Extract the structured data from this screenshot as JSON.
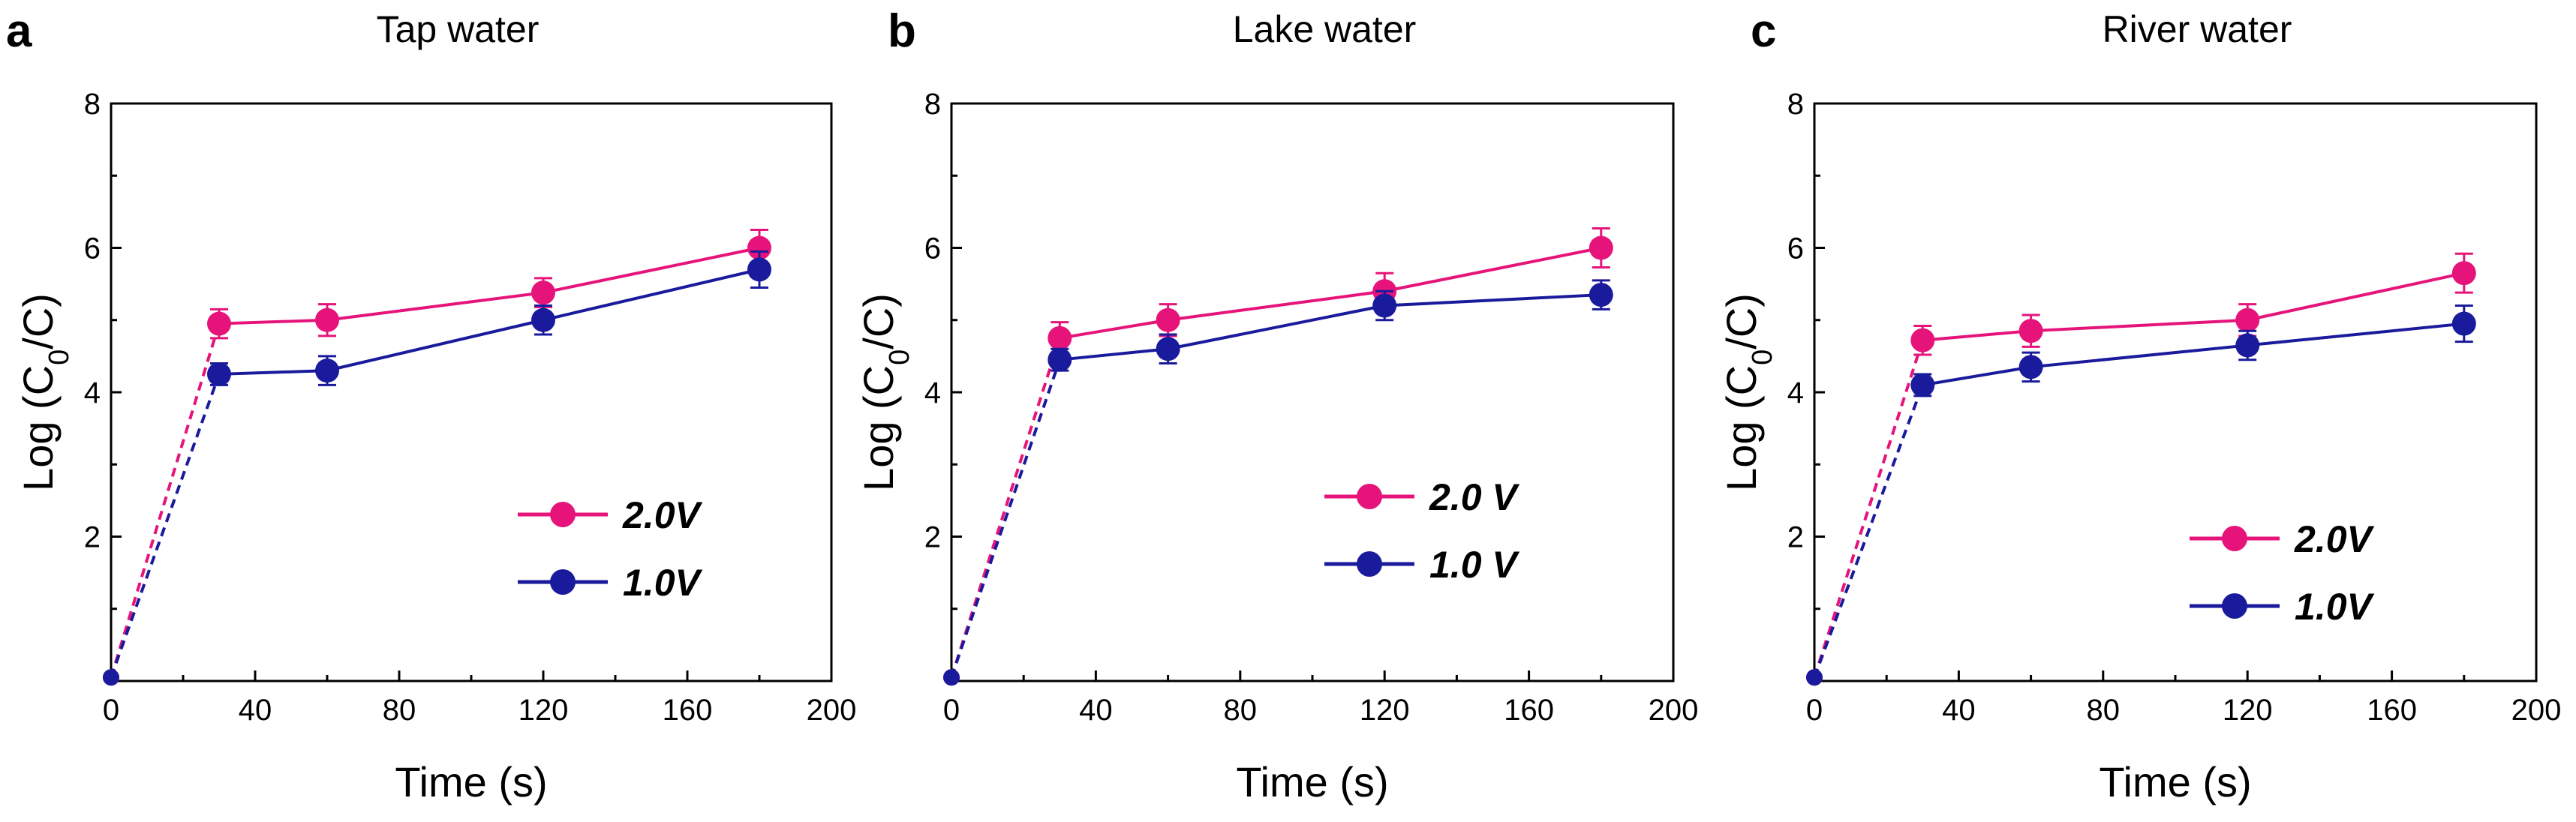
{
  "chart_data": [
    {
      "type": "line",
      "panel_label": "a",
      "title": "Tap water",
      "xlabel": "Time (s)",
      "ylabel_prefix": "Log (C",
      "ylabel_sub": "0",
      "ylabel_suffix": "/C)",
      "xlim": [
        0,
        200
      ],
      "ylim": [
        0,
        8
      ],
      "xticks": [
        0,
        40,
        80,
        120,
        160,
        200
      ],
      "yticks": [
        2,
        4,
        6,
        8
      ],
      "legend_position": "lower-right",
      "series": [
        {
          "name": "2.0V",
          "color": "#e6147a",
          "x": [
            30,
            60,
            120,
            180
          ],
          "y": [
            4.95,
            5.0,
            5.38,
            6.0
          ],
          "err": [
            0.2,
            0.22,
            0.2,
            0.25
          ],
          "origin_y": 0.05
        },
        {
          "name": "1.0V",
          "color": "#1a1a9c",
          "x": [
            30,
            60,
            120,
            180
          ],
          "y": [
            4.25,
            4.3,
            5.0,
            5.7
          ],
          "err": [
            0.15,
            0.2,
            0.2,
            0.25
          ],
          "origin_y": 0.05
        }
      ]
    },
    {
      "type": "line",
      "panel_label": "b",
      "title": "Lake water",
      "xlabel": "Time (s)",
      "ylabel_prefix": "Log (C",
      "ylabel_sub": "0",
      "ylabel_suffix": "/C)",
      "xlim": [
        0,
        200
      ],
      "ylim": [
        0,
        8
      ],
      "xticks": [
        0,
        40,
        80,
        120,
        160,
        200
      ],
      "yticks": [
        2,
        4,
        6,
        8
      ],
      "legend_position": "lower-right",
      "series": [
        {
          "name": "2.0 V",
          "color": "#e6147a",
          "x": [
            30,
            60,
            120,
            180
          ],
          "y": [
            4.75,
            5.0,
            5.4,
            6.0
          ],
          "err": [
            0.22,
            0.22,
            0.25,
            0.27
          ],
          "origin_y": 0.05
        },
        {
          "name": "1.0 V",
          "color": "#1a1a9c",
          "x": [
            30,
            60,
            120,
            180
          ],
          "y": [
            4.45,
            4.6,
            5.2,
            5.35
          ],
          "err": [
            0.15,
            0.2,
            0.2,
            0.2
          ],
          "origin_y": 0.05
        }
      ]
    },
    {
      "type": "line",
      "panel_label": "c",
      "title": "River water",
      "xlabel": "Time (s)",
      "ylabel_prefix": "Log (C",
      "ylabel_sub": "0",
      "ylabel_suffix": "/C)",
      "xlim": [
        0,
        200
      ],
      "ylim": [
        0,
        8
      ],
      "xticks": [
        0,
        40,
        80,
        120,
        160,
        200
      ],
      "yticks": [
        2,
        4,
        6,
        8
      ],
      "legend_position": "lower-right",
      "series": [
        {
          "name": "2.0V",
          "color": "#e6147a",
          "x": [
            30,
            60,
            120,
            180
          ],
          "y": [
            4.72,
            4.85,
            5.0,
            5.65
          ],
          "err": [
            0.2,
            0.22,
            0.22,
            0.27
          ],
          "origin_y": 0.05
        },
        {
          "name": "1.0V",
          "color": "#1a1a9c",
          "x": [
            30,
            60,
            120,
            180
          ],
          "y": [
            4.1,
            4.35,
            4.65,
            4.95
          ],
          "err": [
            0.15,
            0.2,
            0.2,
            0.25
          ],
          "origin_y": 0.05
        }
      ]
    }
  ]
}
